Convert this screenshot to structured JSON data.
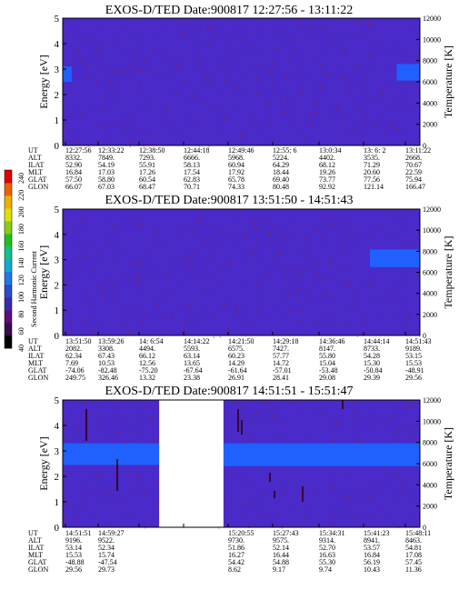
{
  "figure": {
    "colorbar": {
      "label": "Second Harmonic Current",
      "ticks": [
        "40",
        "60",
        "80",
        "100",
        "120",
        "140",
        "160",
        "180",
        "200",
        "220",
        "240"
      ],
      "colors": [
        "#000000",
        "#3a0a4a",
        "#5a0f7a",
        "#3c2aa8",
        "#2a4ad0",
        "#1e78e6",
        "#10aad0",
        "#10c28a",
        "#20c020",
        "#86d010",
        "#e0e000",
        "#f0b000",
        "#f06000",
        "#e00000"
      ]
    },
    "background_color": "#4a2ac8",
    "band_color": "#2060ff",
    "streak_color": "#a01818"
  },
  "chart_data": [
    {
      "type": "heatmap",
      "title": "EXOS-D/TED   Date:900817   12:27:56 - 13:11:22",
      "ylabel": "Energy [eV]",
      "ylabel_right": "Temperature [K]",
      "ylim": [
        0,
        5
      ],
      "ylim_right": [
        0,
        12000
      ],
      "yticks": [
        "0",
        "1",
        "2",
        "3",
        "4",
        "5"
      ],
      "yticks_right": [
        "0",
        "2000",
        "4000",
        "6000",
        "8000",
        "10000",
        "12000"
      ],
      "bands": [
        {
          "t_start": 0.0,
          "t_end": 0.025,
          "e_low": 2.5,
          "e_high": 3.1
        },
        {
          "t_start": 0.935,
          "t_end": 1.0,
          "e_low": 2.55,
          "e_high": 3.2
        }
      ],
      "gaps": [],
      "ephemeris": [
        {
          "label": "UT",
          "values": [
            "12:27:56",
            "12:33:22",
            "12:38:50",
            "12:44:18",
            "12:49:46",
            "12:55: 6",
            "13:0:34",
            "13: 6: 2",
            "13:11:22"
          ]
        },
        {
          "label": "ALT",
          "values": [
            "8332.",
            "7849.",
            "7293.",
            "6666.",
            "5968.",
            "5224.",
            "4402.",
            "3535.",
            "2668."
          ]
        },
        {
          "label": "ILAT",
          "values": [
            "52.90",
            "54.19",
            "55.91",
            "58.13",
            "60.94",
            "64.29",
            "68.12",
            "71.29",
            "70.67"
          ]
        },
        {
          "label": "MLT",
          "values": [
            "16.84",
            "17.03",
            "17.26",
            "17.54",
            "17.92",
            "18.44",
            "19.26",
            "20.60",
            "22.59"
          ]
        },
        {
          "label": "GLAT",
          "values": [
            "57.50",
            "58.80",
            "60.54",
            "62.83",
            "65.78",
            "69.40",
            "73.77",
            "77.56",
            "75.94"
          ]
        },
        {
          "label": "GLON",
          "values": [
            "66.07",
            "67.03",
            "68.47",
            "70.71",
            "74.33",
            "80.48",
            "92.92",
            "121.14",
            "166.47"
          ]
        }
      ]
    },
    {
      "type": "heatmap",
      "title": "EXOS-D/TED   Date:900817   13:51:50 - 14:51:43",
      "ylabel": "Energy [eV]",
      "ylabel_right": "Temperature [K]",
      "ylim": [
        0,
        5
      ],
      "ylim_right": [
        0,
        12000
      ],
      "yticks": [
        "0",
        "1",
        "2",
        "3",
        "4",
        "5"
      ],
      "yticks_right": [
        "0",
        "2000",
        "4000",
        "6000",
        "8000",
        "10000",
        "12000"
      ],
      "bands": [
        {
          "t_start": 0.86,
          "t_end": 1.0,
          "e_low": 2.7,
          "e_high": 3.4
        }
      ],
      "gaps": [],
      "ephemeris": [
        {
          "label": "UT",
          "values": [
            "13:51:50",
            "13:59:26",
            "14: 6:54",
            "14:14:22",
            "14:21:50",
            "14:29:18",
            "14:36:46",
            "14:44:14",
            "14:51:43"
          ]
        },
        {
          "label": "ALT",
          "values": [
            "2082.",
            "3308.",
            "4494.",
            "5593.",
            "6575.",
            "7427.",
            "8147.",
            "8733.",
            "9189."
          ]
        },
        {
          "label": "ILAT",
          "values": [
            "62.34",
            "67.43",
            "66.12",
            "63.14",
            "60.23",
            "57.77",
            "55.80",
            "54.28",
            "53.15"
          ]
        },
        {
          "label": "MLT",
          "values": [
            "7.69",
            "10.53",
            "12.56",
            "13.65",
            "14.29",
            "14.72",
            "15.04",
            "15.30",
            "15.53"
          ]
        },
        {
          "label": "GLAT",
          "values": [
            "-74.06",
            "-82.48",
            "-75.20",
            "-67.64",
            "-61.64",
            "-57.01",
            "-53.48",
            "-50.84",
            "-48.91"
          ]
        },
        {
          "label": "GLON",
          "values": [
            "249.75",
            "326.46",
            "13.32",
            "23.38",
            "26.91",
            "28.41",
            "29.08",
            "29.39",
            "29.56"
          ]
        }
      ]
    },
    {
      "type": "heatmap",
      "title": "EXOS-D/TED   Date:900817   14:51:51 - 15:51:47",
      "ylabel": "Energy [eV]",
      "ylabel_right": "Temperature [K]",
      "ylim": [
        0,
        5
      ],
      "ylim_right": [
        0,
        12000
      ],
      "yticks": [
        "0",
        "1",
        "2",
        "3",
        "4",
        "5"
      ],
      "yticks_right": [
        "0",
        "2000",
        "4000",
        "6000",
        "8000",
        "10000",
        "12000"
      ],
      "bands": [
        {
          "t_start": 0.0,
          "t_end": 0.27,
          "e_low": 2.45,
          "e_high": 3.3
        },
        {
          "t_start": 0.45,
          "t_end": 1.0,
          "e_low": 2.4,
          "e_high": 3.3
        }
      ],
      "gaps": [
        {
          "t_start": 0.27,
          "t_end": 0.45
        }
      ],
      "ephemeris": [
        {
          "label": "UT",
          "values": [
            "14:51:51",
            "14:59:27",
            "",
            "",
            "15:20:55",
            "15:27:43",
            "15:34:31",
            "15:41:23",
            "15:48:11"
          ]
        },
        {
          "label": "ALT",
          "values": [
            "9196.",
            "9522.",
            "",
            "",
            "9730.",
            "9575.",
            "9314.",
            "8941.",
            "8463."
          ]
        },
        {
          "label": "ILAT",
          "values": [
            "53.14",
            "52.34",
            "",
            "",
            "51.86",
            "52.14",
            "52.70",
            "53.57",
            "54.81"
          ]
        },
        {
          "label": "MLT",
          "values": [
            "15.53",
            "15.74",
            "",
            "",
            "16.27",
            "16.44",
            "16.63",
            "16.84",
            "17.08"
          ]
        },
        {
          "label": "GLAT",
          "values": [
            "-48.88",
            "-47.54",
            "",
            "",
            "54.42",
            "54.88",
            "55.30",
            "56.19",
            "57.45"
          ]
        },
        {
          "label": "GLON",
          "values": [
            "29.56",
            "29.73",
            "",
            "",
            "8.62",
            "9.17",
            "9.74",
            "10.43",
            "11.36"
          ]
        }
      ]
    }
  ]
}
